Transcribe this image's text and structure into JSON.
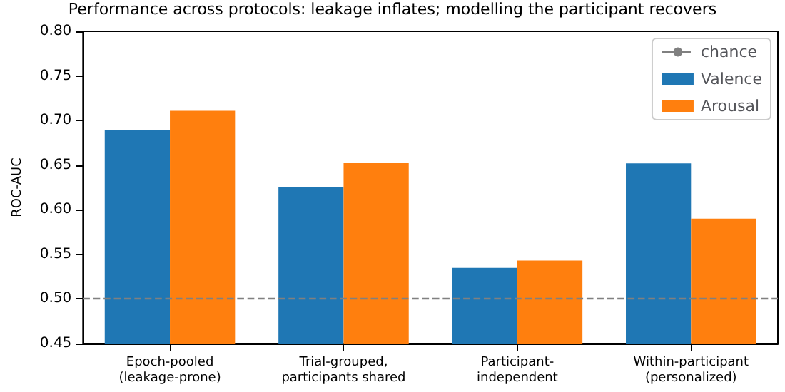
{
  "chart_data": {
    "type": "bar",
    "title": "Performance across protocols: leakage inflates; modelling the participant recovers",
    "ylabel": "ROC-AUC",
    "categories": [
      "Epoch-pooled\n(leakage-prone)",
      "Trial-grouped,\nparticipants shared",
      "Participant-\nindependent",
      "Within-participant\n(personalized)"
    ],
    "series": [
      {
        "name": "Valence",
        "color": "#1f77b4",
        "values": [
          0.689,
          0.625,
          0.535,
          0.652
        ]
      },
      {
        "name": "Arousal",
        "color": "#ff7f0e",
        "values": [
          0.711,
          0.653,
          0.543,
          0.59
        ]
      }
    ],
    "ylim": [
      0.45,
      0.8
    ],
    "yticks": [
      0.45,
      {
        "value": 0.5,
        "label": "0.50"
      },
      0.55,
      {
        "value": 0.6,
        "label": "0.60"
      },
      0.65,
      {
        "value": 0.7,
        "label": "0.70"
      },
      0.75,
      {
        "value": 0.8,
        "label": "0.80"
      }
    ],
    "ref_lines": [
      {
        "axis": "y",
        "value": 0.5,
        "label": "chance",
        "color": "#808080",
        "line_style": "dashed"
      }
    ],
    "legend": "top right",
    "grid": false
  }
}
